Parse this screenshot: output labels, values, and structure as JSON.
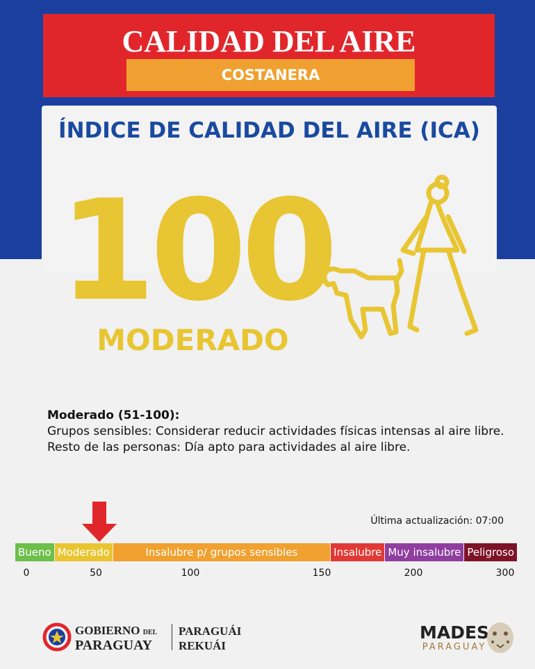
{
  "header": {
    "title": "CALIDAD DEL AIRE",
    "location": "COSTANERA"
  },
  "panel": {
    "title": "ÍNDICE DE CALIDAD DEL AIRE (ICA)",
    "value": 100,
    "level": "MODERADO"
  },
  "description": {
    "heading": "Moderado (51-100):",
    "lines": [
      "Grupos sensibles: Considerar reducir actividades físicas intensas al aire libre.",
      "Resto de las personas: Día apto para actividades al aire libre."
    ]
  },
  "update": "Última actualización: 07:00",
  "scale": {
    "segments": [
      {
        "label": "Bueno",
        "color": "#6cbf4a"
      },
      {
        "label": "Moderado",
        "color": "#e9c531"
      },
      {
        "label": "Insalubre p/ grupos sensibles",
        "color": "#f0a12f"
      },
      {
        "label": "Insalubre",
        "color": "#e03a36"
      },
      {
        "label": "Muy insalubre",
        "color": "#8f3ea0"
      },
      {
        "label": "Peligroso",
        "color": "#7d1328"
      }
    ],
    "ticks": [
      0,
      50,
      100,
      150,
      200,
      300
    ]
  },
  "footer": {
    "gov": [
      "GOBIERNO",
      "DEL",
      "PARAGUAY"
    ],
    "slogan": [
      "PARAGUÁI",
      "REKUÁI"
    ],
    "agency": [
      "MADES",
      "PARAGUAY"
    ]
  }
}
